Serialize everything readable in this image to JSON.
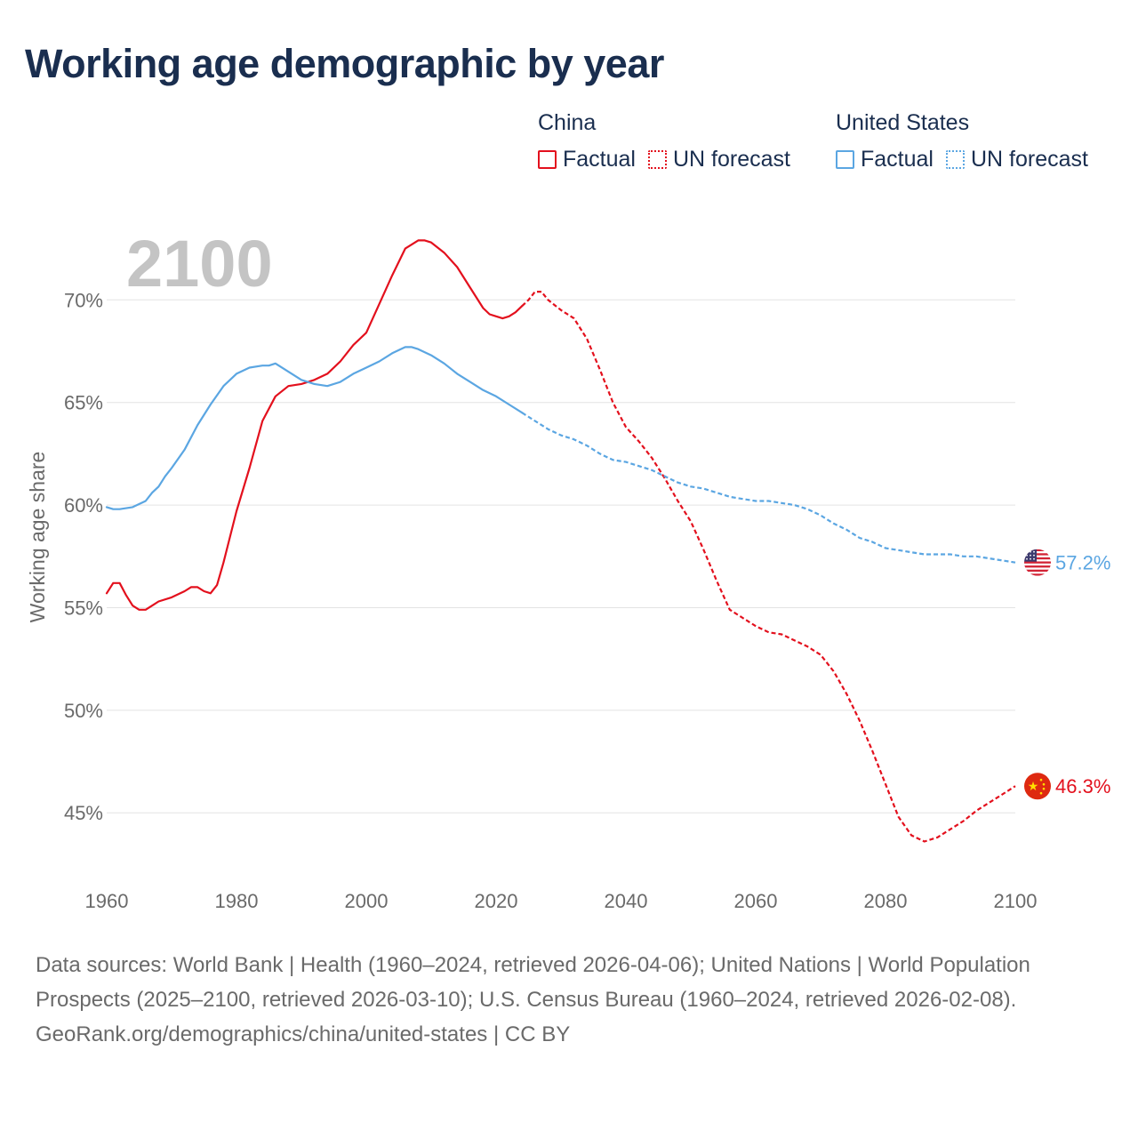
{
  "title": "Working age demographic by year",
  "year_display": "2100",
  "legend": {
    "china": {
      "title": "China",
      "factual": "Factual",
      "forecast": "UN forecast"
    },
    "us": {
      "title": "United States",
      "factual": "Factual",
      "forecast": "UN forecast"
    }
  },
  "colors": {
    "china": "#e3101d",
    "us": "#5ba6e2"
  },
  "footer": {
    "sources": "Data sources: World Bank | Health (1960–2024, retrieved 2026-04-06); United Nations | World Population Prospects (2025–2100, retrieved 2026-03-10); U.S. Census Bureau (1960–2024, retrieved 2026-02-08).",
    "credit": "GeoRank.org/demographics/china/united-states | CC BY"
  },
  "chart_data": {
    "type": "line",
    "title": "Working age demographic by year",
    "xlabel": "",
    "ylabel": "Working age share",
    "xlim": [
      1960,
      2100
    ],
    "ylim": [
      41.5,
      74
    ],
    "x_ticks": [
      1960,
      1980,
      2000,
      2020,
      2040,
      2060,
      2080,
      2100
    ],
    "x_tick_labels": [
      "1960",
      "1980",
      "2000",
      "2020",
      "2040",
      "2060",
      "2080",
      "2100"
    ],
    "y_ticks": [
      45,
      50,
      55,
      60,
      65,
      70
    ],
    "y_tick_labels": [
      "45%",
      "50%",
      "55%",
      "60%",
      "65%",
      "70%"
    ],
    "grid": true,
    "series": [
      {
        "name": "China",
        "color": "#e3101d",
        "end_label": "46.3%",
        "factual_end_year": 2024,
        "x": [
          1960,
          1961,
          1962,
          1963,
          1964,
          1965,
          1966,
          1967,
          1968,
          1970,
          1972,
          1973,
          1974,
          1975,
          1976,
          1977,
          1978,
          1980,
          1982,
          1984,
          1986,
          1988,
          1990,
          1992,
          1994,
          1996,
          1998,
          2000,
          2002,
          2004,
          2006,
          2008,
          2009,
          2010,
          2012,
          2014,
          2016,
          2018,
          2019,
          2020,
          2021,
          2022,
          2023,
          2024,
          2025,
          2026,
          2027,
          2028,
          2030,
          2032,
          2034,
          2036,
          2038,
          2040,
          2042,
          2044,
          2046,
          2048,
          2050,
          2052,
          2054,
          2056,
          2058,
          2060,
          2062,
          2064,
          2066,
          2068,
          2070,
          2072,
          2074,
          2076,
          2078,
          2080,
          2082,
          2084,
          2086,
          2088,
          2090,
          2092,
          2094,
          2096,
          2098,
          2100
        ],
        "y": [
          55.7,
          56.2,
          56.2,
          55.6,
          55.1,
          54.9,
          54.9,
          55.1,
          55.3,
          55.5,
          55.8,
          56.0,
          56.0,
          55.8,
          55.7,
          56.1,
          57.2,
          59.7,
          61.8,
          64.1,
          65.3,
          65.8,
          65.9,
          66.1,
          66.4,
          67.0,
          67.8,
          68.4,
          69.8,
          71.2,
          72.5,
          72.9,
          72.9,
          72.8,
          72.3,
          71.6,
          70.6,
          69.6,
          69.3,
          69.2,
          69.1,
          69.2,
          69.4,
          69.7,
          70.0,
          70.4,
          70.4,
          70.0,
          69.5,
          69.1,
          68.1,
          66.6,
          65.0,
          63.8,
          63.1,
          62.3,
          61.3,
          60.2,
          59.2,
          57.8,
          56.3,
          54.9,
          54.5,
          54.1,
          53.8,
          53.7,
          53.4,
          53.1,
          52.7,
          51.9,
          50.8,
          49.5,
          48.0,
          46.4,
          44.8,
          43.9,
          43.6,
          43.8,
          44.2,
          44.6,
          45.1,
          45.5,
          45.9,
          46.3
        ]
      },
      {
        "name": "United States",
        "color": "#5ba6e2",
        "end_label": "57.2%",
        "factual_end_year": 2024,
        "x": [
          1960,
          1961,
          1962,
          1964,
          1966,
          1967,
          1968,
          1969,
          1970,
          1972,
          1974,
          1976,
          1978,
          1980,
          1982,
          1984,
          1985,
          1986,
          1988,
          1990,
          1992,
          1994,
          1996,
          1998,
          2000,
          2002,
          2004,
          2006,
          2007,
          2008,
          2010,
          2012,
          2014,
          2016,
          2018,
          2020,
          2022,
          2024,
          2026,
          2028,
          2030,
          2032,
          2034,
          2036,
          2038,
          2040,
          2042,
          2044,
          2046,
          2048,
          2050,
          2052,
          2054,
          2056,
          2058,
          2060,
          2062,
          2064,
          2066,
          2068,
          2070,
          2072,
          2074,
          2076,
          2078,
          2080,
          2082,
          2084,
          2086,
          2088,
          2090,
          2092,
          2094,
          2096,
          2098,
          2100
        ],
        "y": [
          59.9,
          59.8,
          59.8,
          59.9,
          60.2,
          60.6,
          60.9,
          61.4,
          61.8,
          62.7,
          63.9,
          64.9,
          65.8,
          66.4,
          66.7,
          66.8,
          66.8,
          66.9,
          66.5,
          66.1,
          65.9,
          65.8,
          66.0,
          66.4,
          66.7,
          67.0,
          67.4,
          67.7,
          67.7,
          67.6,
          67.3,
          66.9,
          66.4,
          66.0,
          65.6,
          65.3,
          64.9,
          64.5,
          64.1,
          63.7,
          63.4,
          63.2,
          62.9,
          62.5,
          62.2,
          62.1,
          61.9,
          61.7,
          61.4,
          61.1,
          60.9,
          60.8,
          60.6,
          60.4,
          60.3,
          60.2,
          60.2,
          60.1,
          60.0,
          59.8,
          59.5,
          59.1,
          58.8,
          58.4,
          58.2,
          57.9,
          57.8,
          57.7,
          57.6,
          57.6,
          57.6,
          57.5,
          57.5,
          57.4,
          57.3,
          57.2
        ]
      }
    ]
  }
}
